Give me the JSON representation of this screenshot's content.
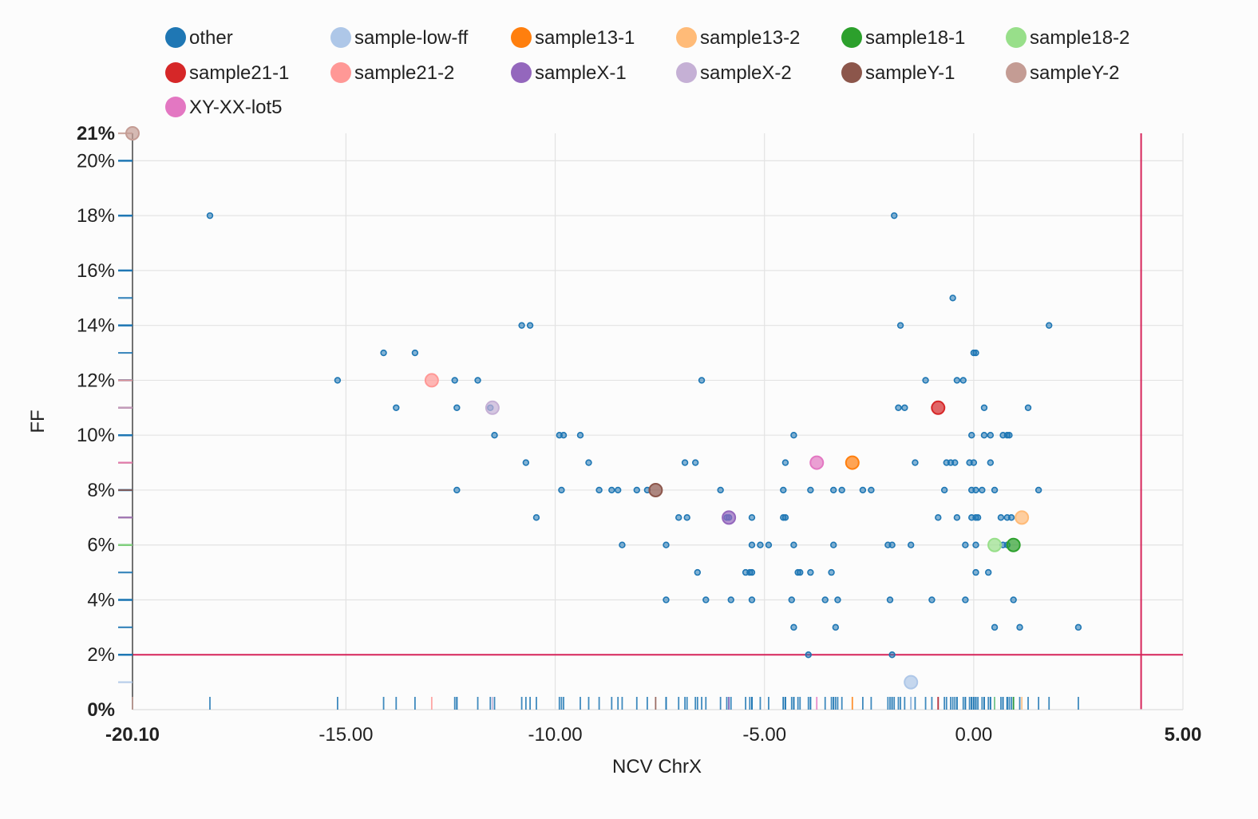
{
  "chart_data": {
    "type": "scatter",
    "xlabel": "NCV ChrX",
    "ylabel": "FF",
    "xlim": [
      -20.1,
      5.0
    ],
    "ylim": [
      0,
      21
    ],
    "x_tick_labels": [
      "-20.10",
      "-15.00",
      "-10.00",
      "-5.00",
      "0.00",
      "5.00"
    ],
    "x_tick_values": [
      -20.1,
      -15,
      -10,
      -5,
      0,
      5
    ],
    "y_tick_labels": [
      "0%",
      "2%",
      "4%",
      "6%",
      "8%",
      "10%",
      "12%",
      "14%",
      "16%",
      "18%",
      "20%",
      "21%"
    ],
    "y_tick_values": [
      0,
      2,
      4,
      6,
      8,
      10,
      12,
      14,
      16,
      18,
      20,
      21
    ],
    "threshold_lines": {
      "y": 2,
      "x": 4.0,
      "color": "#d6245a"
    },
    "legend_position": "top",
    "series": [
      {
        "name": "other",
        "color": "#1f77b4",
        "points": [
          [
            -18.25,
            18
          ],
          [
            -1.9,
            18
          ],
          [
            -0.5,
            15
          ],
          [
            -10.8,
            14
          ],
          [
            -10.6,
            14
          ],
          [
            -1.75,
            14
          ],
          [
            1.8,
            14
          ],
          [
            -14.1,
            13
          ],
          [
            -13.35,
            13
          ],
          [
            0.0,
            13
          ],
          [
            0.05,
            13
          ],
          [
            -15.2,
            12
          ],
          [
            -12.4,
            12
          ],
          [
            -11.85,
            12
          ],
          [
            -6.5,
            12
          ],
          [
            -1.15,
            12
          ],
          [
            -0.4,
            12
          ],
          [
            -0.25,
            12
          ],
          [
            -13.8,
            11
          ],
          [
            -12.35,
            11
          ],
          [
            -11.55,
            11
          ],
          [
            -1.8,
            11
          ],
          [
            -1.65,
            11
          ],
          [
            0.25,
            11
          ],
          [
            1.3,
            11
          ],
          [
            -11.45,
            10
          ],
          [
            -9.9,
            10
          ],
          [
            -9.8,
            10
          ],
          [
            -9.4,
            10
          ],
          [
            -4.3,
            10
          ],
          [
            -0.05,
            10
          ],
          [
            0.25,
            10
          ],
          [
            0.4,
            10
          ],
          [
            0.7,
            10
          ],
          [
            0.8,
            10
          ],
          [
            0.85,
            10
          ],
          [
            -10.7,
            9
          ],
          [
            -9.2,
            9
          ],
          [
            -6.9,
            9
          ],
          [
            -6.65,
            9
          ],
          [
            -4.5,
            9
          ],
          [
            -1.4,
            9
          ],
          [
            -0.65,
            9
          ],
          [
            -0.55,
            9
          ],
          [
            -0.45,
            9
          ],
          [
            -0.1,
            9
          ],
          [
            0.0,
            9
          ],
          [
            0.4,
            9
          ],
          [
            -12.35,
            8
          ],
          [
            -9.85,
            8
          ],
          [
            -8.95,
            8
          ],
          [
            -8.65,
            8
          ],
          [
            -8.5,
            8
          ],
          [
            -8.05,
            8
          ],
          [
            -7.8,
            8
          ],
          [
            -6.05,
            8
          ],
          [
            -4.55,
            8
          ],
          [
            -3.9,
            8
          ],
          [
            -3.35,
            8
          ],
          [
            -3.15,
            8
          ],
          [
            -2.65,
            8
          ],
          [
            -2.45,
            8
          ],
          [
            -0.7,
            8
          ],
          [
            -0.05,
            8
          ],
          [
            0.05,
            8
          ],
          [
            0.2,
            8
          ],
          [
            0.5,
            8
          ],
          [
            1.55,
            8
          ],
          [
            -10.45,
            7
          ],
          [
            -7.05,
            7
          ],
          [
            -6.85,
            7
          ],
          [
            -5.9,
            7
          ],
          [
            -5.85,
            7
          ],
          [
            -5.3,
            7
          ],
          [
            -4.55,
            7
          ],
          [
            -4.5,
            7
          ],
          [
            -0.85,
            7
          ],
          [
            -0.4,
            7
          ],
          [
            -0.05,
            7
          ],
          [
            0.05,
            7
          ],
          [
            0.1,
            7
          ],
          [
            0.65,
            7
          ],
          [
            0.8,
            7
          ],
          [
            0.9,
            7
          ],
          [
            -8.4,
            6
          ],
          [
            -7.35,
            6
          ],
          [
            -5.3,
            6
          ],
          [
            -5.1,
            6
          ],
          [
            -4.9,
            6
          ],
          [
            -4.3,
            6
          ],
          [
            -3.35,
            6
          ],
          [
            -2.05,
            6
          ],
          [
            -1.95,
            6
          ],
          [
            -1.5,
            6
          ],
          [
            -0.2,
            6
          ],
          [
            0.05,
            6
          ],
          [
            0.7,
            6
          ],
          [
            0.8,
            6
          ],
          [
            -6.6,
            5
          ],
          [
            -5.45,
            5
          ],
          [
            -5.35,
            5
          ],
          [
            -5.3,
            5
          ],
          [
            -4.2,
            5
          ],
          [
            -4.15,
            5
          ],
          [
            -3.9,
            5
          ],
          [
            -3.4,
            5
          ],
          [
            0.05,
            5
          ],
          [
            0.35,
            5
          ],
          [
            -7.35,
            4
          ],
          [
            -6.4,
            4
          ],
          [
            -5.8,
            4
          ],
          [
            -5.3,
            4
          ],
          [
            -4.35,
            4
          ],
          [
            -3.55,
            4
          ],
          [
            -3.25,
            4
          ],
          [
            -2.0,
            4
          ],
          [
            -1.0,
            4
          ],
          [
            -0.2,
            4
          ],
          [
            0.95,
            4
          ],
          [
            -4.3,
            3
          ],
          [
            -3.3,
            3
          ],
          [
            0.5,
            3
          ],
          [
            1.1,
            3
          ],
          [
            2.5,
            3
          ],
          [
            -3.95,
            2
          ],
          [
            -1.95,
            2
          ]
        ]
      },
      {
        "name": "sample-low-ff",
        "color": "#aec7e8",
        "points": [
          [
            -1.5,
            1
          ]
        ]
      },
      {
        "name": "sample13-1",
        "color": "#ff7f0e",
        "points": [
          [
            -2.9,
            9
          ]
        ]
      },
      {
        "name": "sample13-2",
        "color": "#ffbb78",
        "points": [
          [
            1.15,
            7
          ]
        ]
      },
      {
        "name": "sample18-1",
        "color": "#2ca02c",
        "points": [
          [
            0.95,
            6
          ]
        ]
      },
      {
        "name": "sample18-2",
        "color": "#98df8a",
        "points": [
          [
            0.5,
            6
          ]
        ]
      },
      {
        "name": "sample21-1",
        "color": "#d62728",
        "points": [
          [
            -0.85,
            11
          ]
        ]
      },
      {
        "name": "sample21-2",
        "color": "#ff9896",
        "points": [
          [
            -12.95,
            12
          ]
        ]
      },
      {
        "name": "sampleX-1",
        "color": "#9467bd",
        "points": [
          [
            -5.85,
            7
          ]
        ]
      },
      {
        "name": "sampleX-2",
        "color": "#c5b0d5",
        "points": [
          [
            -11.5,
            11
          ]
        ]
      },
      {
        "name": "sampleY-1",
        "color": "#8c564b",
        "points": [
          [
            -7.6,
            8
          ]
        ]
      },
      {
        "name": "sampleY-2",
        "color": "#c49c94",
        "points": [
          [
            -20.1,
            21
          ]
        ]
      },
      {
        "name": "XY-XX-lot5",
        "color": "#e377c2",
        "points": [
          [
            -3.75,
            9
          ]
        ]
      }
    ]
  }
}
